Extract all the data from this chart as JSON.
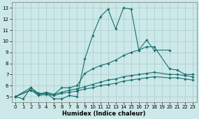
{
  "title": "",
  "xlabel": "Humidex (Indice chaleur)",
  "ylabel": "",
  "background_color": "#cce8e8",
  "grid_color": "#aacccc",
  "line_color": "#1a7070",
  "xlim": [
    -0.5,
    23.5
  ],
  "ylim": [
    4.5,
    13.5
  ],
  "xticks": [
    0,
    1,
    2,
    3,
    4,
    5,
    6,
    7,
    8,
    9,
    10,
    11,
    12,
    13,
    14,
    15,
    16,
    17,
    18,
    19,
    20,
    21,
    22,
    23
  ],
  "yticks": [
    5,
    6,
    7,
    8,
    9,
    10,
    11,
    12,
    13
  ],
  "s1_x": [
    0,
    1,
    2,
    3,
    4,
    5,
    6,
    7,
    8,
    9,
    10,
    11,
    12,
    13,
    14,
    15,
    16,
    17,
    18,
    20
  ],
  "s1_y": [
    5.0,
    4.8,
    5.8,
    5.3,
    5.3,
    4.8,
    4.8,
    5.1,
    5.0,
    8.4,
    10.5,
    12.2,
    12.9,
    11.1,
    13.0,
    12.9,
    9.2,
    10.1,
    9.2,
    9.2
  ],
  "s2_x": [
    0,
    2,
    3,
    4,
    5,
    6,
    7,
    8,
    9,
    10,
    11,
    12,
    13,
    14,
    15,
    16,
    17,
    18,
    20,
    21,
    22,
    23
  ],
  "s2_y": [
    5.0,
    5.8,
    5.2,
    5.4,
    5.2,
    5.8,
    5.8,
    6.0,
    7.1,
    7.5,
    7.8,
    8.0,
    8.3,
    8.7,
    9.0,
    9.2,
    9.5,
    9.5,
    7.5,
    7.4,
    7.0,
    7.0
  ],
  "s3_x": [
    0,
    2,
    3,
    4,
    5,
    6,
    7,
    8,
    9,
    10,
    11,
    12,
    13,
    14,
    15,
    16,
    17,
    18,
    20,
    21,
    22,
    23
  ],
  "s3_y": [
    5.0,
    5.6,
    5.2,
    5.3,
    5.2,
    5.4,
    5.6,
    5.7,
    5.9,
    6.1,
    6.3,
    6.5,
    6.6,
    6.8,
    6.9,
    7.0,
    7.1,
    7.2,
    7.0,
    7.0,
    6.9,
    6.8
  ],
  "s4_x": [
    0,
    2,
    3,
    4,
    5,
    6,
    7,
    8,
    9,
    10,
    11,
    12,
    13,
    14,
    15,
    16,
    17,
    18,
    20,
    21,
    22,
    23
  ],
  "s4_y": [
    5.0,
    5.6,
    5.1,
    5.2,
    5.1,
    5.3,
    5.4,
    5.5,
    5.7,
    5.8,
    6.0,
    6.1,
    6.2,
    6.4,
    6.5,
    6.6,
    6.7,
    6.8,
    6.7,
    6.7,
    6.6,
    6.5
  ]
}
